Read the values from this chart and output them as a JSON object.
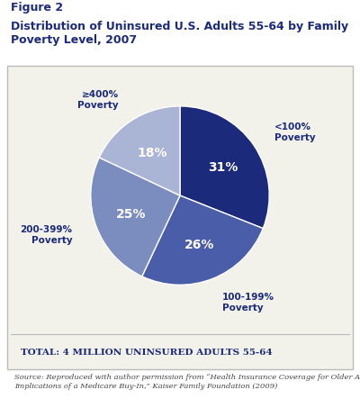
{
  "title_line1": "Figure 2",
  "title_line2": "Distribution of Uninsured U.S. Adults 55-64 by Family\nPoverty Level, 2007",
  "slices": [
    31,
    26,
    25,
    18
  ],
  "colors": [
    "#1b2a7b",
    "#4a5da8",
    "#7b8dbf",
    "#aab4d4"
  ],
  "pct_labels": [
    "31%",
    "26%",
    "25%",
    "18%"
  ],
  "startangle": 90,
  "footer_text": "Total: 4 million uninsured adults 55-64",
  "source_text": "Source: Reproduced with author permission from “Health Insurance Coverage for Older Adults:\nImplications of a Medicare Buy-In,” Kaiser Family Foundation (2009)",
  "bg_color": "#f2f2ea",
  "white": "#ffffff",
  "dark_blue": "#1b2a7b",
  "gray_border": "#bbbbbb"
}
